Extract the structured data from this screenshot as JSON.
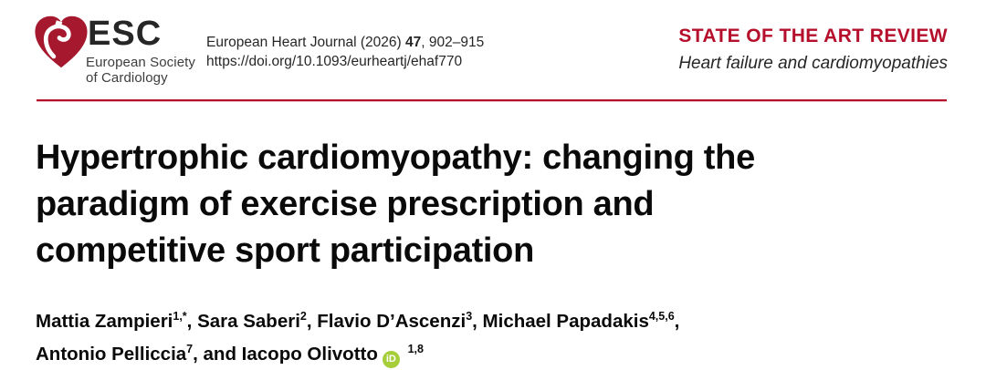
{
  "colors": {
    "brand_red": "#b60f2b",
    "logo_heart_red": "#a5182e",
    "orcid_green": "#a6ce39",
    "text_dark": "#1a1a1a"
  },
  "header": {
    "logo": {
      "heart_icon": "esc-heart-icon",
      "abbr": "ESC",
      "society_line1": "European Society",
      "society_line2": "of Cardiology"
    },
    "citation": {
      "pre": "European Heart Journal (2026) ",
      "volume": "47",
      "post": ", 902–915",
      "doi": "https://doi.org/10.1093/eurheartj/ehaf770"
    },
    "article_type": "STATE OF THE ART REVIEW",
    "section": "Heart failure and cardiomyopathies"
  },
  "article": {
    "title_lines": [
      "Hypertrophic cardiomyopathy: changing the",
      "paradigm of exercise prescription and",
      "competitive sport participation"
    ],
    "authors": [
      {
        "name": "Mattia Zampieri",
        "sup": "1,*",
        "sep": ", "
      },
      {
        "name": "Sara Saberi",
        "sup": "2",
        "sep": ", "
      },
      {
        "name": "Flavio D’Ascenzi",
        "sup": "3",
        "sep": ", "
      },
      {
        "name": "Michael Papadakis",
        "sup": "4,5,6",
        "sep": ",",
        "break_after": true
      },
      {
        "name": "Antonio Pelliccia",
        "sup": "7",
        "sep": ", and "
      },
      {
        "name": "Iacopo Olivotto",
        "sup": "1,8",
        "orcid": true
      }
    ],
    "orcid_label": "iD"
  }
}
